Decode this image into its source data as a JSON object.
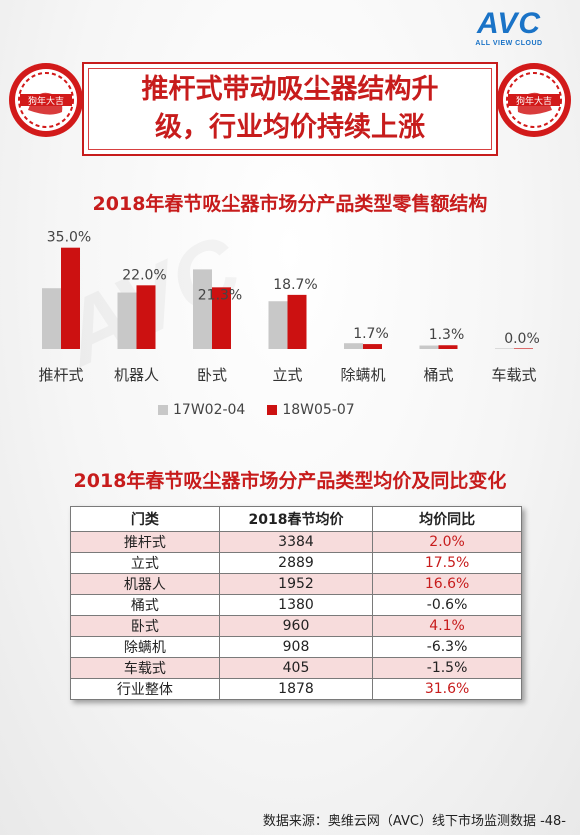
{
  "logo": {
    "mark": "AVC",
    "sub": "ALL VIEW CLOUD"
  },
  "title": {
    "line1": "推杆式带动吸尘器结构升",
    "line2": "级，行业均价持续上涨"
  },
  "seal_text": "狗年大吉",
  "chart_data": [
    {
      "type": "bar",
      "title": "2018年春节吸尘器市场分产品类型零售额结构",
      "categories": [
        "推杆式",
        "机器人",
        "卧式",
        "立式",
        "除螨机",
        "桶式",
        "车载式"
      ],
      "series": [
        {
          "name": "17W02-04",
          "color": "#c8c8c8",
          "values": [
            21.0,
            19.5,
            27.5,
            16.5,
            2.0,
            1.2,
            0.1
          ]
        },
        {
          "name": "18W05-07",
          "color": "#cc1111",
          "values": [
            35.0,
            22.0,
            21.3,
            18.7,
            1.7,
            1.3,
            0.0
          ]
        }
      ],
      "data_labels": [
        "35.0%",
        "22.0%",
        "21.3%",
        "18.7%",
        "1.7%",
        "1.3%",
        "0.0%"
      ],
      "ylim": [
        0,
        38
      ],
      "legend": "bottom"
    },
    {
      "type": "table",
      "title": "2018年春节吸尘器市场分产品类型均价及同比变化",
      "columns": [
        "门类",
        "2018春节均价",
        "均价同比"
      ],
      "rows": [
        [
          "推杆式",
          "3384",
          "2.0%"
        ],
        [
          "立式",
          "2889",
          "17.5%"
        ],
        [
          "机器人",
          "1952",
          "16.6%"
        ],
        [
          "桶式",
          "1380",
          "-0.6%"
        ],
        [
          "卧式",
          "960",
          "4.1%"
        ],
        [
          "除螨机",
          "908",
          "-6.3%"
        ],
        [
          "车载式",
          "405",
          "-1.5%"
        ],
        [
          "行业整体",
          "1878",
          "31.6%"
        ]
      ]
    }
  ],
  "footer": "数据来源：奥维云网（AVC）线下市场监测数据 -48-",
  "colors": {
    "accent": "#c71c1c",
    "bar_prev": "#c8c8c8",
    "bar_curr": "#cc1111",
    "positive": "#c71c1c"
  }
}
